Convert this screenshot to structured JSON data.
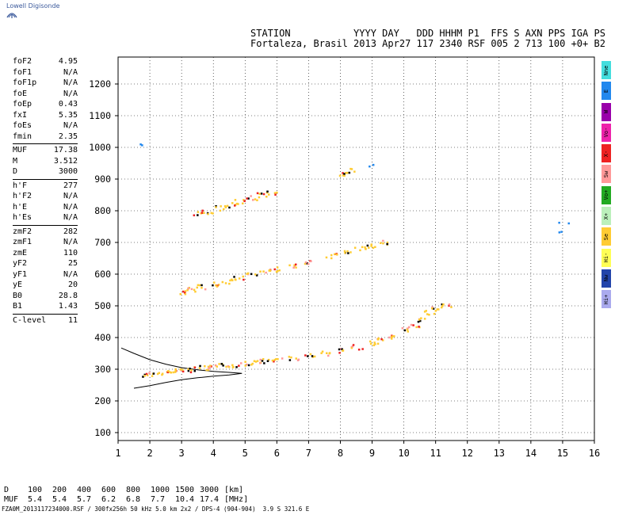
{
  "branding": {
    "logo_text": "Lowell Digisonde"
  },
  "header": {
    "labels_line": "STATION           YYYY DAY   DDD HHHM P1  FFS S AXN PPS IGA PS",
    "values_line": "Fortaleza, Brasil 2013 Apr27 117 2340 RSF 005 2 713 100 +0+ B2"
  },
  "params": [
    [
      [
        "foF2",
        "4.95"
      ],
      [
        "foF1",
        "N/A"
      ],
      [
        "foF1p",
        "N/A"
      ],
      [
        "foE",
        "N/A"
      ],
      [
        "foEp",
        "0.43"
      ],
      [
        "fxI",
        "5.35"
      ],
      [
        "foEs",
        "N/A"
      ],
      [
        "fmin",
        "2.35"
      ]
    ],
    [
      [
        "MUF",
        "17.38"
      ],
      [
        "M",
        "3.512"
      ],
      [
        "D",
        "3000"
      ]
    ],
    [
      [
        "h'F",
        "277"
      ],
      [
        "h'F2",
        "N/A"
      ],
      [
        "h'E",
        "N/A"
      ],
      [
        "h'Es",
        "N/A"
      ]
    ],
    [
      [
        "zmF2",
        "282"
      ],
      [
        "zmF1",
        "N/A"
      ],
      [
        "zmE",
        "110"
      ],
      [
        "yF2",
        "25"
      ],
      [
        "yF1",
        "N/A"
      ],
      [
        "yE",
        "20"
      ],
      [
        "B0",
        "28.8"
      ],
      [
        "B1",
        "1.43"
      ]
    ],
    [
      [
        "C-level",
        "11"
      ]
    ]
  ],
  "legend": [
    {
      "label": "Nne",
      "color": "#44dddd"
    },
    {
      "label": "E",
      "color": "#2288ee"
    },
    {
      "label": "W",
      "color": "#9900aa"
    },
    {
      "label": "Vo-",
      "color": "#ee22aa"
    },
    {
      "label": "X-",
      "color": "#ee2222"
    },
    {
      "label": "Sw",
      "color": "#ff9999"
    },
    {
      "label": "Vo+",
      "color": "#22aa22"
    },
    {
      "label": "X+",
      "color": "#bbf0bb"
    },
    {
      "label": "Se",
      "color": "#ffcc33"
    },
    {
      "label": "Hi-",
      "color": "#ffff55"
    },
    {
      "label": "Nw",
      "color": "#2244aa"
    },
    {
      "label": "Hi+",
      "color": "#aaaaee"
    }
  ],
  "muf_table": {
    "d_label": "D",
    "muf_label": "MUF",
    "d_values": [
      "100",
      "200",
      "400",
      "600",
      "800",
      "1000",
      "1500",
      "3000"
    ],
    "muf_values": [
      "5.4",
      "5.4",
      "5.7",
      "6.2",
      "6.8",
      "7.7",
      "10.4",
      "17.4"
    ],
    "d_unit": "[km]",
    "muf_unit": "[MHz]"
  },
  "footer": "FZA0M_2013117234000.RSF / 300fx256h 50 kHz 5.0 km 2x2 / DPS-4 (904-904)  3.9 S 321.6 E",
  "chart_data": {
    "type": "scatter",
    "xlim": [
      1,
      16
    ],
    "ylim": [
      75,
      1285
    ],
    "x_ticks": [
      "1",
      "2",
      "3",
      "4",
      "5",
      "6",
      "7",
      "8",
      "9",
      "10",
      "11",
      "12",
      "13",
      "14",
      "15",
      "16"
    ],
    "y_ticks": [
      "100",
      "200",
      "300",
      "400",
      "500",
      "600",
      "700",
      "800",
      "900",
      "1000",
      "1100",
      "1200"
    ],
    "grid": true,
    "traces": [
      {
        "name": "F trace",
        "points": [
          [
            1.9,
            285
          ],
          [
            2.2,
            288
          ],
          [
            2.5,
            292
          ],
          [
            2.8,
            297
          ],
          [
            3.1,
            300
          ],
          [
            3.4,
            303
          ],
          [
            3.7,
            306
          ],
          [
            4.0,
            309
          ],
          [
            4.3,
            313
          ],
          [
            4.6,
            316
          ],
          [
            5.0,
            320
          ],
          [
            5.3,
            324
          ],
          [
            5.6,
            328
          ],
          [
            6.0,
            331
          ],
          [
            6.5,
            338
          ],
          [
            7.0,
            345
          ],
          [
            7.5,
            352
          ],
          [
            8.0,
            362
          ],
          [
            8.5,
            372
          ],
          [
            9.0,
            385
          ],
          [
            9.3,
            395
          ],
          [
            9.6,
            405
          ],
          [
            10.0,
            425
          ],
          [
            10.3,
            440
          ],
          [
            10.6,
            460
          ],
          [
            10.8,
            480
          ],
          [
            11.0,
            495
          ],
          [
            11.3,
            505
          ]
        ]
      },
      {
        "name": "2F trace",
        "points": [
          [
            3.0,
            545
          ],
          [
            3.3,
            555
          ],
          [
            3.6,
            562
          ],
          [
            4.0,
            570
          ],
          [
            4.4,
            580
          ],
          [
            4.8,
            590
          ],
          [
            5.2,
            600
          ],
          [
            5.6,
            610
          ],
          [
            5.9,
            617
          ],
          [
            6.5,
            628
          ],
          [
            7.0,
            640
          ],
          [
            7.7,
            660
          ],
          [
            8.2,
            672
          ],
          [
            8.6,
            682
          ],
          [
            9.0,
            692
          ],
          [
            9.4,
            703
          ]
        ]
      },
      {
        "name": "3F trace",
        "points": [
          [
            3.5,
            795
          ],
          [
            3.8,
            800
          ],
          [
            4.2,
            810
          ],
          [
            4.5,
            820
          ],
          [
            4.8,
            830
          ],
          [
            5.2,
            843
          ],
          [
            5.5,
            852
          ],
          [
            5.8,
            860
          ],
          [
            8.0,
            918
          ],
          [
            8.3,
            928
          ]
        ]
      },
      {
        "name": "Isolated",
        "points": [
          [
            1.85,
            1010
          ],
          [
            15.0,
            760
          ],
          [
            15.0,
            730
          ],
          [
            9.0,
            948
          ]
        ]
      }
    ],
    "model_profile": [
      [
        1.1,
        367
      ],
      [
        1.5,
        350
      ],
      [
        2.0,
        330
      ],
      [
        2.5,
        316
      ],
      [
        3.0,
        305
      ],
      [
        3.5,
        298
      ],
      [
        4.0,
        293
      ],
      [
        4.5,
        290
      ],
      [
        4.9,
        287
      ],
      [
        4.5,
        282
      ],
      [
        4.0,
        278
      ],
      [
        3.5,
        273
      ],
      [
        3.0,
        267
      ],
      [
        2.5,
        258
      ],
      [
        2.0,
        248
      ],
      [
        1.5,
        240
      ]
    ]
  }
}
